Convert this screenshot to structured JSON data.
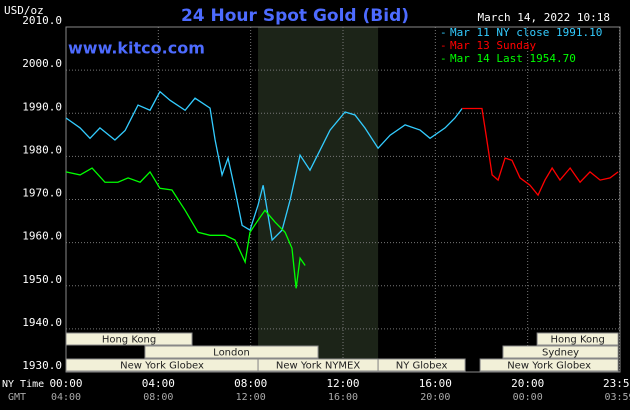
{
  "chart_data": {
    "type": "line",
    "title": "24 Hour Spot Gold (Bid)",
    "watermark": "www.kitco.com",
    "timestamp": "March 14, 2022 10:18",
    "y_label": "USD/oz",
    "x_label": "NY Time",
    "x2_label": "GMT",
    "xlim": [
      0,
      24
    ],
    "xticks": [
      {
        "value": 0,
        "label": "00:00"
      },
      {
        "value": 4,
        "label": "04:00"
      },
      {
        "value": 8,
        "label": "08:00"
      },
      {
        "value": 12,
        "label": "12:00"
      },
      {
        "value": 16,
        "label": "16:00"
      },
      {
        "value": 20,
        "label": "20:00"
      },
      {
        "value": 23.98,
        "label": "23:59"
      }
    ],
    "x2tick_labels": [
      "04:00",
      "08:00",
      "12:00",
      "16:00",
      "20:00",
      "00:00",
      "03:59"
    ],
    "ylim": [
      1930,
      2010
    ],
    "yticks": [
      {
        "value": 1930,
        "label": "1930.0"
      },
      {
        "value": 1940,
        "label": "1940.0"
      },
      {
        "value": 1950,
        "label": "1950.0"
      },
      {
        "value": 1960,
        "label": "1960.0"
      },
      {
        "value": 1970,
        "label": "1970.0"
      },
      {
        "value": 1980,
        "label": "1980.0"
      },
      {
        "value": 1990,
        "label": "1990.0"
      },
      {
        "value": 2000,
        "label": "2000.0"
      },
      {
        "value": 2010,
        "label": "2010.0"
      }
    ],
    "grid": true,
    "highlight_range": [
      8.32,
      13.52
    ],
    "series": [
      {
        "name": "Mar 11 NY close 1991.10",
        "color": "#33ccff",
        "x": [
          0,
          0.61,
          1.04,
          1.47,
          2.12,
          2.56,
          3.12,
          3.64,
          4.07,
          4.51,
          5.16,
          5.59,
          6.24,
          6.46,
          6.76,
          7.02,
          7.32,
          7.63,
          7.97,
          8.32,
          8.54,
          8.75,
          8.93,
          9.36,
          9.71,
          10.14,
          10.57,
          11.01,
          11.44,
          12.09,
          12.52,
          12.95,
          13.52,
          14.04,
          14.69,
          15.34,
          15.77,
          16.42,
          16.85,
          17.16
        ],
        "values": [
          1988.9,
          1986.6,
          1984.2,
          1986.6,
          1983.8,
          1986,
          1991.9,
          1990.7,
          1995,
          1993,
          1990.7,
          1993.5,
          1991.2,
          1983.8,
          1975.7,
          1979.6,
          1972.2,
          1964,
          1962.9,
          1968.7,
          1973.3,
          1966.4,
          1960.6,
          1962.9,
          1969.9,
          1980.3,
          1976.8,
          1981.5,
          1986.1,
          1990.3,
          1989.6,
          1986.6,
          1981.9,
          1984.9,
          1987.3,
          1986.1,
          1984.2,
          1986.6,
          1988.9,
          1991.1
        ]
      },
      {
        "name": "Mar 13 Sunday",
        "color": "#ff0000",
        "x": [
          17.16,
          18.02,
          18.2,
          18.46,
          18.72,
          19.02,
          19.32,
          19.67,
          20.1,
          20.45,
          20.75,
          21.06,
          21.4,
          21.84,
          22.27,
          22.7,
          23.14,
          23.57,
          23.92
        ],
        "values": [
          1991.1,
          1991.1,
          1984.9,
          1975.7,
          1974.5,
          1979.6,
          1979.1,
          1975,
          1973.3,
          1971,
          1974.5,
          1977.3,
          1974.5,
          1977.3,
          1974,
          1976.4,
          1974.5,
          1975,
          1976.4
        ]
      },
      {
        "name": "Mar 14 Last 1954.70",
        "color": "#00ff00",
        "x": [
          0,
          0.61,
          1.13,
          1.69,
          2.25,
          2.69,
          3.21,
          3.64,
          4.07,
          4.59,
          5.16,
          5.72,
          6.24,
          6.89,
          7.32,
          7.76,
          7.97,
          8.32,
          8.62,
          9.05,
          9.49,
          9.79,
          9.97,
          10.14,
          10.36
        ],
        "values": [
          1976.4,
          1975.7,
          1977.3,
          1974,
          1974,
          1975,
          1974,
          1976.4,
          1972.6,
          1972.2,
          1967.5,
          1962.4,
          1961.7,
          1961.7,
          1960.6,
          1955.5,
          1962.4,
          1965.2,
          1967.5,
          1964.8,
          1962.4,
          1958.7,
          1949.4,
          1956.4,
          1954.7
        ]
      }
    ],
    "sessions": [
      [
        {
          "label": "Hong Kong",
          "start": 0,
          "end": 5.46
        },
        {
          "label": "Hong Kong",
          "start": 20.41,
          "end": 23.92
        }
      ],
      [
        {
          "label": "London",
          "start": 3.42,
          "end": 10.92
        },
        {
          "label": "Sydney",
          "start": 18.93,
          "end": 23.92
        }
      ],
      [
        {
          "label": "New York Globex",
          "start": 0,
          "end": 8.32
        },
        {
          "label": "New York NYMEX",
          "start": 8.32,
          "end": 13.52
        },
        {
          "label": "NY Globex",
          "start": 13.52,
          "end": 17.29
        },
        {
          "label": "New York Globex",
          "start": 17.94,
          "end": 23.92
        }
      ]
    ]
  }
}
